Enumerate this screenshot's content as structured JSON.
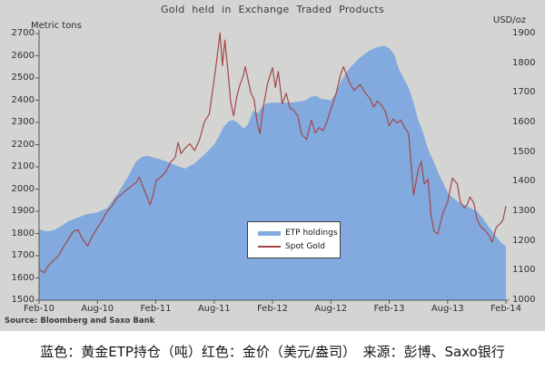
{
  "title": "Gold held in Exchange Traded Products",
  "left_axis_unit": "Metric tons",
  "right_axis_unit": "USD/oz",
  "source": "Source: Bloomberg and Saxo Bank",
  "caption": "蓝色：黄金ETP持仓（吨）红色：金价（美元/盎司）　来源：彭博、Saxo银行",
  "legend": {
    "etp_label": "ETP holdings",
    "spot_label": "Spot Gold"
  },
  "colors": {
    "area_blue": "#82aade",
    "line_red": "#a04848",
    "chart_bg": "#d4d4d2",
    "axis": "#555555",
    "text": "#2e2e2e"
  },
  "chart_data": {
    "type": "area",
    "title": "Gold held in Exchange Traded Products",
    "grid": false,
    "legend_position": "bottom-center",
    "x_unit": "months since Feb-2010",
    "x_range": [
      0,
      48
    ],
    "x_ticks": [
      "Feb-10",
      "Aug-10",
      "Feb-11",
      "Aug-11",
      "Feb-12",
      "Aug-12",
      "Feb-13",
      "Aug-13",
      "Feb-14"
    ],
    "left_axis": {
      "label": "Metric tons",
      "min": 1500,
      "max": 2700,
      "step": 100
    },
    "right_axis": {
      "label": "USD/oz",
      "min": 1000,
      "max": 1900,
      "step": 100
    },
    "series": [
      {
        "name": "ETP holdings",
        "type": "area",
        "axis": "left",
        "points": [
          [
            0,
            1820
          ],
          [
            0.5,
            1812
          ],
          [
            1,
            1810
          ],
          [
            1.5,
            1815
          ],
          [
            2,
            1825
          ],
          [
            3,
            1855
          ],
          [
            4,
            1872
          ],
          [
            5,
            1888
          ],
          [
            6,
            1895
          ],
          [
            7,
            1915
          ],
          [
            8,
            1975
          ],
          [
            9,
            2045
          ],
          [
            10,
            2125
          ],
          [
            10.5,
            2142
          ],
          [
            11,
            2150
          ],
          [
            12,
            2140
          ],
          [
            13,
            2126
          ],
          [
            14,
            2108
          ],
          [
            15,
            2092
          ],
          [
            16,
            2115
          ],
          [
            17,
            2155
          ],
          [
            18,
            2200
          ],
          [
            18.5,
            2238
          ],
          [
            19,
            2282
          ],
          [
            19.5,
            2305
          ],
          [
            20,
            2310
          ],
          [
            20.5,
            2295
          ],
          [
            21,
            2272
          ],
          [
            21.5,
            2292
          ],
          [
            22,
            2352
          ],
          [
            22.5,
            2342
          ],
          [
            23,
            2375
          ],
          [
            23.5,
            2386
          ],
          [
            24,
            2390
          ],
          [
            25,
            2388
          ],
          [
            26,
            2390
          ],
          [
            27,
            2396
          ],
          [
            27.5,
            2402
          ],
          [
            28,
            2416
          ],
          [
            28.5,
            2420
          ],
          [
            29,
            2406
          ],
          [
            30,
            2400
          ],
          [
            30.5,
            2432
          ],
          [
            31,
            2482
          ],
          [
            31.5,
            2518
          ],
          [
            32,
            2548
          ],
          [
            32.5,
            2570
          ],
          [
            33,
            2592
          ],
          [
            34,
            2625
          ],
          [
            35,
            2642
          ],
          [
            35.5,
            2645
          ],
          [
            36,
            2634
          ],
          [
            36.5,
            2608
          ],
          [
            37,
            2540
          ],
          [
            38,
            2455
          ],
          [
            38.5,
            2388
          ],
          [
            39,
            2308
          ],
          [
            39.5,
            2252
          ],
          [
            40,
            2178
          ],
          [
            40.5,
            2132
          ],
          [
            41,
            2078
          ],
          [
            41.5,
            2032
          ],
          [
            42,
            1985
          ],
          [
            42.5,
            1962
          ],
          [
            43,
            1945
          ],
          [
            43.5,
            1932
          ],
          [
            44,
            1922
          ],
          [
            44.5,
            1912
          ],
          [
            45,
            1900
          ],
          [
            45.5,
            1876
          ],
          [
            46,
            1845
          ],
          [
            46.5,
            1815
          ],
          [
            47,
            1786
          ],
          [
            47.5,
            1760
          ],
          [
            48,
            1742
          ]
        ]
      },
      {
        "name": "Spot Gold",
        "type": "line",
        "axis": "right",
        "points": [
          [
            0,
            1105
          ],
          [
            0.5,
            1092
          ],
          [
            1,
            1118
          ],
          [
            1.5,
            1135
          ],
          [
            2,
            1150
          ],
          [
            2.5,
            1180
          ],
          [
            3,
            1205
          ],
          [
            3.5,
            1232
          ],
          [
            4,
            1238
          ],
          [
            4.5,
            1205
          ],
          [
            5,
            1183
          ],
          [
            5.5,
            1218
          ],
          [
            6,
            1245
          ],
          [
            6.5,
            1270
          ],
          [
            7,
            1300
          ],
          [
            7.5,
            1318
          ],
          [
            8,
            1345
          ],
          [
            8.5,
            1358
          ],
          [
            9,
            1372
          ],
          [
            9.5,
            1385
          ],
          [
            10,
            1398
          ],
          [
            10.3,
            1415
          ],
          [
            10.6,
            1390
          ],
          [
            11,
            1358
          ],
          [
            11.4,
            1322
          ],
          [
            11.7,
            1350
          ],
          [
            12,
            1402
          ],
          [
            12.5,
            1415
          ],
          [
            13,
            1432
          ],
          [
            13.5,
            1465
          ],
          [
            14,
            1482
          ],
          [
            14.3,
            1532
          ],
          [
            14.6,
            1495
          ],
          [
            15,
            1512
          ],
          [
            15.5,
            1528
          ],
          [
            16,
            1505
          ],
          [
            16.5,
            1542
          ],
          [
            17,
            1602
          ],
          [
            17.5,
            1628
          ],
          [
            18,
            1745
          ],
          [
            18.3,
            1820
          ],
          [
            18.6,
            1902
          ],
          [
            18.85,
            1792
          ],
          [
            19.1,
            1878
          ],
          [
            19.4,
            1782
          ],
          [
            19.7,
            1668
          ],
          [
            20,
            1622
          ],
          [
            20.3,
            1682
          ],
          [
            20.6,
            1722
          ],
          [
            21,
            1758
          ],
          [
            21.2,
            1788
          ],
          [
            21.5,
            1742
          ],
          [
            21.8,
            1698
          ],
          [
            22.1,
            1678
          ],
          [
            22.4,
            1602
          ],
          [
            22.7,
            1562
          ],
          [
            23,
            1642
          ],
          [
            23.5,
            1732
          ],
          [
            24,
            1785
          ],
          [
            24.3,
            1718
          ],
          [
            24.6,
            1772
          ],
          [
            25,
            1662
          ],
          [
            25.4,
            1698
          ],
          [
            25.8,
            1648
          ],
          [
            26.2,
            1640
          ],
          [
            26.6,
            1622
          ],
          [
            27,
            1560
          ],
          [
            27.5,
            1542
          ],
          [
            28,
            1608
          ],
          [
            28.4,
            1565
          ],
          [
            28.8,
            1582
          ],
          [
            29.2,
            1572
          ],
          [
            29.6,
            1602
          ],
          [
            30,
            1645
          ],
          [
            30.5,
            1692
          ],
          [
            31,
            1762
          ],
          [
            31.3,
            1788
          ],
          [
            31.7,
            1752
          ],
          [
            32,
            1728
          ],
          [
            32.4,
            1708
          ],
          [
            33,
            1728
          ],
          [
            33.5,
            1702
          ],
          [
            34,
            1682
          ],
          [
            34.4,
            1652
          ],
          [
            34.8,
            1672
          ],
          [
            35.2,
            1658
          ],
          [
            35.6,
            1638
          ],
          [
            36,
            1588
          ],
          [
            36.4,
            1612
          ],
          [
            36.8,
            1598
          ],
          [
            37.2,
            1608
          ],
          [
            37.6,
            1582
          ],
          [
            38,
            1562
          ],
          [
            38.5,
            1355
          ],
          [
            39,
            1442
          ],
          [
            39.3,
            1468
          ],
          [
            39.6,
            1392
          ],
          [
            40,
            1408
          ],
          [
            40.3,
            1288
          ],
          [
            40.6,
            1232
          ],
          [
            41,
            1224
          ],
          [
            41.5,
            1292
          ],
          [
            42,
            1332
          ],
          [
            42.5,
            1412
          ],
          [
            43,
            1392
          ],
          [
            43.3,
            1332
          ],
          [
            43.7,
            1312
          ],
          [
            44,
            1322
          ],
          [
            44.3,
            1348
          ],
          [
            44.7,
            1328
          ],
          [
            45,
            1275
          ],
          [
            45.4,
            1248
          ],
          [
            45.8,
            1238
          ],
          [
            46.2,
            1222
          ],
          [
            46.6,
            1196
          ],
          [
            47,
            1246
          ],
          [
            47.4,
            1258
          ],
          [
            47.7,
            1272
          ],
          [
            48,
            1318
          ]
        ]
      }
    ]
  }
}
